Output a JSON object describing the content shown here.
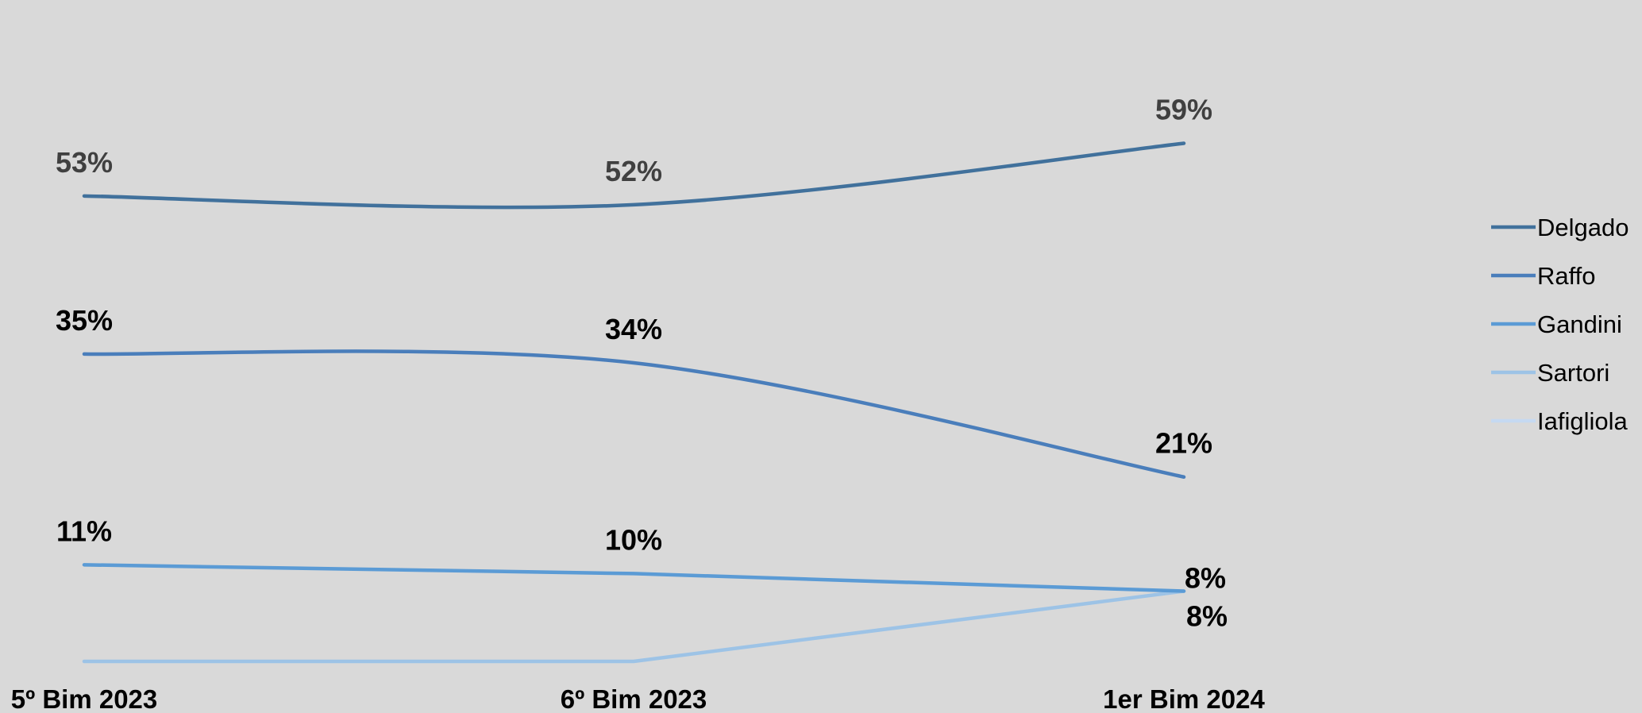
{
  "chart_data": {
    "type": "line",
    "title": "",
    "xlabel": "",
    "ylabel": "",
    "categories": [
      "5º Bim 2023",
      "6º Bim 2023",
      "1er Bim 2024"
    ],
    "ylim": [
      0,
      63
    ],
    "grid": false,
    "legend_position": "right",
    "series": [
      {
        "name": "Delgado",
        "color": "#41719c",
        "label_color": "#404040",
        "values": [
          53,
          52,
          59
        ],
        "labels": [
          "53%",
          "52%",
          "59%"
        ]
      },
      {
        "name": "Raffo",
        "color": "#4a7ebb",
        "label_color": "#000000",
        "values": [
          35,
          34,
          21
        ],
        "labels": [
          "35%",
          "34%",
          "21%"
        ]
      },
      {
        "name": "Gandini",
        "color": "#5b9bd5",
        "label_color": "#000000",
        "values": [
          11,
          10,
          8
        ],
        "labels": [
          "11%",
          "10%",
          "8%"
        ]
      },
      {
        "name": "Sartori",
        "color": "#9dc3e6",
        "label_color": "#000000",
        "values": [
          null,
          null,
          8
        ],
        "labels": [
          "",
          "",
          "8%"
        ]
      },
      {
        "name": "Iafigliola",
        "color": "#c5d9f1",
        "label_color": "#000000",
        "values": [
          null,
          null,
          null
        ],
        "labels": [
          "",
          "",
          ""
        ]
      }
    ]
  }
}
